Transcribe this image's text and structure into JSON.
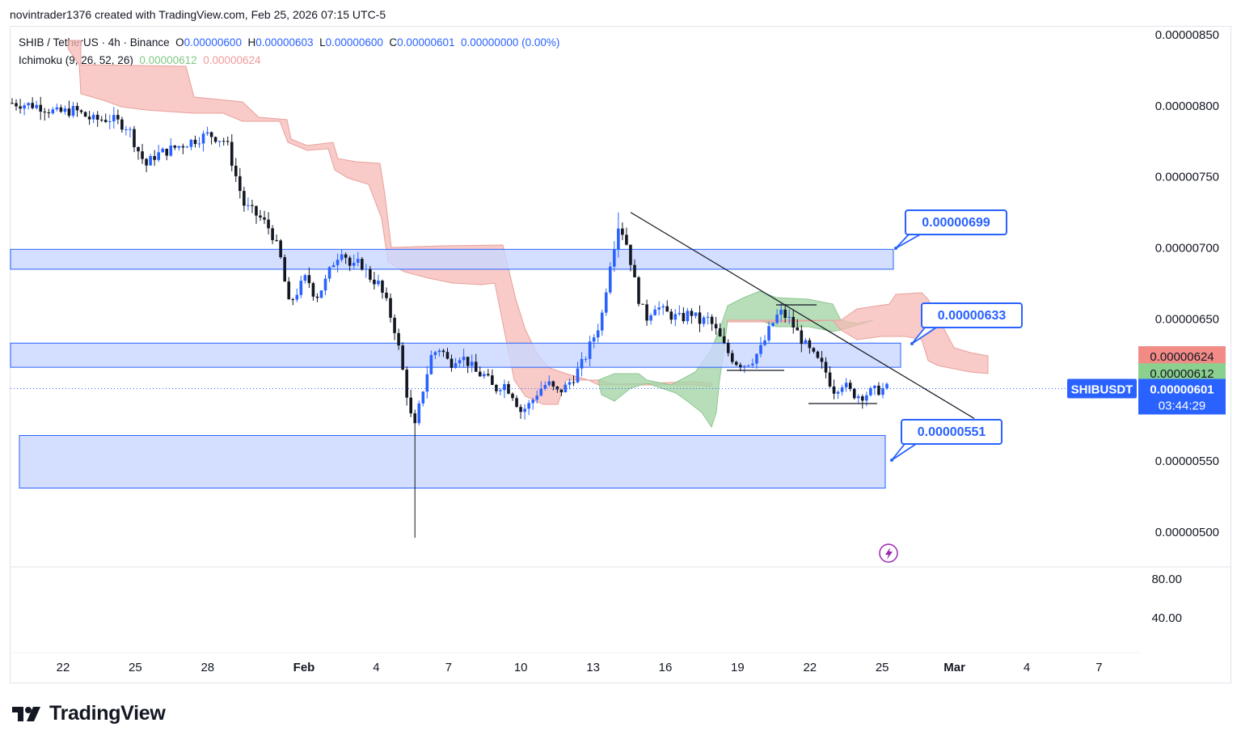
{
  "header": {
    "created_by": "novintrader1376 created with TradingView.com, Feb 25, 2026 07:15 UTC-5"
  },
  "legend": {
    "symbol": "SHIB / TetherUS · 4h · Binance",
    "o_label": "O",
    "o_value": "0.00000600",
    "h_label": "H",
    "h_value": "0.00000603",
    "l_label": "L",
    "l_value": "0.00000600",
    "c_label": "C",
    "c_value": "0.00000601",
    "change": "0.00000000 (0.00%)",
    "indicator_name": "Ichimoku (9, 26, 52, 26)",
    "indicator_val1": "0.00000612",
    "indicator_val2": "0.00000624"
  },
  "branding": {
    "name": "TradingView"
  },
  "colors": {
    "up": "#2962ff",
    "down": "#131722",
    "zone": "#c9d7ff",
    "zone_border": "#2962ff",
    "cloud_bear": "#f6b9b5",
    "cloud_bull": "#a5d6a7",
    "callout": "#2962ff",
    "price_tag": "#2962ff",
    "kumo_red_tag": "#ef5350",
    "kumo_green_tag": "#66bb6a"
  },
  "chart_data": {
    "type": "candlestick",
    "symbol_tag": "SHIBUSDT",
    "price_axis": {
      "ticks": [
        "0.00000850",
        "0.00000800",
        "0.00000750",
        "0.00000700",
        "0.00000650",
        "0.00000550",
        "0.00000500"
      ],
      "range": [
        4.7e-06,
        8.6e-06
      ]
    },
    "oscillator_axis": {
      "ticks": [
        "80.00",
        "40.00"
      ]
    },
    "time_axis": {
      "labels": [
        "22",
        "25",
        "28",
        "Feb",
        "4",
        "7",
        "10",
        "13",
        "16",
        "19",
        "22",
        "25",
        "Mar",
        "4",
        "7"
      ]
    },
    "last_price": {
      "value": "0.00000601",
      "countdown": "03:44:29"
    },
    "ichimoku_tags": {
      "span_b": "0.00000624",
      "span_a": "0.00000612"
    },
    "zones": [
      {
        "name": "resistance-zone-upper",
        "top": 6.99e-06,
        "bottom": 6.85e-06,
        "start": "Jan 22",
        "end": "Feb 25"
      },
      {
        "name": "resistance-zone-mid",
        "top": 6.33e-06,
        "bottom": 6.16e-06,
        "start": "Jan 22",
        "end": "Feb 26"
      },
      {
        "name": "support-zone-lower",
        "top": 5.68e-06,
        "bottom": 5.31e-06,
        "start": "Jan 22",
        "end": "Feb 25"
      }
    ],
    "callouts": [
      "0.00000699",
      "0.00000633",
      "0.00000551"
    ],
    "trendline": {
      "from": {
        "date": "Feb 14",
        "price": 7.25e-06
      },
      "to": {
        "date": "Feb 28",
        "price": 5.8e-06
      }
    },
    "price_path": [
      {
        "t": 0,
        "p": 802
      },
      {
        "t": 3,
        "p": 800
      },
      {
        "t": 5,
        "p": 795
      },
      {
        "t": 7,
        "p": 797
      },
      {
        "t": 9,
        "p": 790
      },
      {
        "t": 11,
        "p": 791
      },
      {
        "t": 13,
        "p": 785
      },
      {
        "t": 14,
        "p": 770
      },
      {
        "t": 15,
        "p": 758
      },
      {
        "t": 16,
        "p": 765
      },
      {
        "t": 18,
        "p": 770
      },
      {
        "t": 20,
        "p": 775
      },
      {
        "t": 22,
        "p": 780
      },
      {
        "t": 24,
        "p": 775
      },
      {
        "t": 25,
        "p": 752
      },
      {
        "t": 26,
        "p": 730
      },
      {
        "t": 27,
        "p": 725
      },
      {
        "t": 28,
        "p": 720
      },
      {
        "t": 29,
        "p": 712
      },
      {
        "t": 30,
        "p": 695
      },
      {
        "t": 31,
        "p": 660
      },
      {
        "t": 32,
        "p": 670
      },
      {
        "t": 33,
        "p": 680
      },
      {
        "t": 34,
        "p": 665
      },
      {
        "t": 35,
        "p": 675
      },
      {
        "t": 36,
        "p": 690
      },
      {
        "t": 37,
        "p": 700
      },
      {
        "t": 38,
        "p": 685
      },
      {
        "t": 39,
        "p": 690
      },
      {
        "t": 40,
        "p": 680
      },
      {
        "t": 41,
        "p": 675
      },
      {
        "t": 42,
        "p": 660
      },
      {
        "t": 43,
        "p": 640
      },
      {
        "t": 44,
        "p": 605
      },
      {
        "t": 45,
        "p": 570
      },
      {
        "t": 46,
        "p": 600
      },
      {
        "t": 47,
        "p": 625
      },
      {
        "t": 48,
        "p": 630
      },
      {
        "t": 49,
        "p": 618
      },
      {
        "t": 50,
        "p": 625
      },
      {
        "t": 51,
        "p": 620
      },
      {
        "t": 52,
        "p": 612
      },
      {
        "t": 53,
        "p": 610
      },
      {
        "t": 54,
        "p": 600
      },
      {
        "t": 55,
        "p": 605
      },
      {
        "t": 56,
        "p": 598
      },
      {
        "t": 57,
        "p": 585
      },
      {
        "t": 58,
        "p": 590
      },
      {
        "t": 59,
        "p": 600
      },
      {
        "t": 60,
        "p": 605
      },
      {
        "t": 61,
        "p": 598
      },
      {
        "t": 62,
        "p": 602
      },
      {
        "t": 63,
        "p": 610
      },
      {
        "t": 64,
        "p": 620
      },
      {
        "t": 65,
        "p": 635
      },
      {
        "t": 66,
        "p": 650
      },
      {
        "t": 67,
        "p": 690
      },
      {
        "t": 68,
        "p": 718
      },
      {
        "t": 69,
        "p": 700
      },
      {
        "t": 70,
        "p": 668
      },
      {
        "t": 71,
        "p": 650
      },
      {
        "t": 72,
        "p": 660
      },
      {
        "t": 73,
        "p": 655
      },
      {
        "t": 74,
        "p": 652
      },
      {
        "t": 75,
        "p": 650
      },
      {
        "t": 76,
        "p": 655
      },
      {
        "t": 77,
        "p": 648
      },
      {
        "t": 78,
        "p": 650
      },
      {
        "t": 79,
        "p": 640
      },
      {
        "t": 80,
        "p": 628
      },
      {
        "t": 81,
        "p": 620
      },
      {
        "t": 82,
        "p": 618
      },
      {
        "t": 83,
        "p": 622
      },
      {
        "t": 84,
        "p": 630
      },
      {
        "t": 85,
        "p": 645
      },
      {
        "t": 86,
        "p": 655
      },
      {
        "t": 87,
        "p": 650
      },
      {
        "t": 88,
        "p": 640
      },
      {
        "t": 89,
        "p": 630
      },
      {
        "t": 90,
        "p": 622
      },
      {
        "t": 91,
        "p": 615
      },
      {
        "t": 92,
        "p": 600
      },
      {
        "t": 93,
        "p": 605
      },
      {
        "t": 94,
        "p": 598
      },
      {
        "t": 95,
        "p": 596
      },
      {
        "t": 96,
        "p": 598
      },
      {
        "t": 97,
        "p": 600
      },
      {
        "t": 98,
        "p": 601
      }
    ]
  }
}
